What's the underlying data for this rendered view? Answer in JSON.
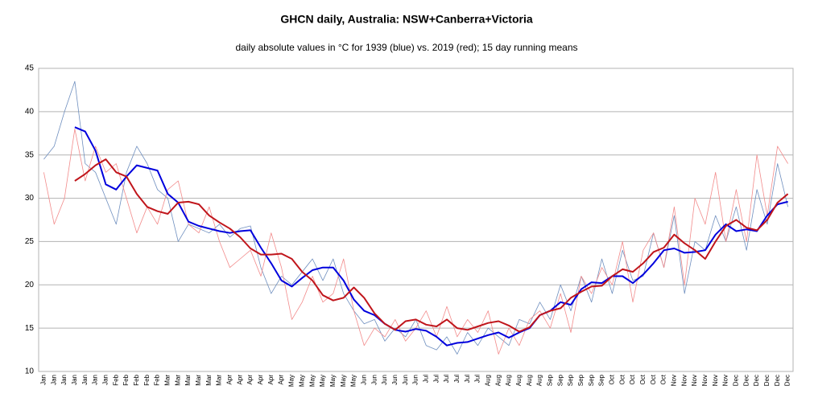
{
  "chart_data": {
    "type": "line",
    "title": "GHCN daily, Australia: NSW+Canberra+Victoria",
    "subtitle": "daily absolute values in °C for 1939 (blue) vs. 2019 (red); 15 day running means",
    "categories": [
      "Jan",
      "Jan",
      "Jan",
      "Jan",
      "Jan",
      "Jan",
      "Jan",
      "Feb",
      "Feb",
      "Feb",
      "Feb",
      "Feb",
      "Mar",
      "Mar",
      "Mar",
      "Mar",
      "Mar",
      "Mar",
      "Apr",
      "Apr",
      "Apr",
      "Apr",
      "Apr",
      "Apr",
      "May",
      "May",
      "May",
      "May",
      "May",
      "May",
      "May",
      "Jun",
      "Jun",
      "Jun",
      "Jun",
      "Jun",
      "Jun",
      "Jul",
      "Jul",
      "Jul",
      "Jul",
      "Jul",
      "Jul",
      "Aug",
      "Aug",
      "Aug",
      "Aug",
      "Aug",
      "Aug",
      "Sep",
      "Sep",
      "Sep",
      "Sep",
      "Sep",
      "Sep",
      "Oct",
      "Oct",
      "Oct",
      "Oct",
      "Oct",
      "Oct",
      "Nov",
      "Nov",
      "Nov",
      "Nov",
      "Nov",
      "Nov",
      "Dec",
      "Dec",
      "Dec",
      "Dec",
      "Dec",
      "Dec"
    ],
    "series": [
      {
        "color": "#6f8fbf",
        "width": 0.8,
        "values": [
          34.5,
          36,
          40,
          43.5,
          34,
          33,
          30,
          27,
          33,
          36,
          34,
          31,
          30,
          25,
          27,
          26.5,
          26,
          27,
          25.5,
          26.5,
          26.8,
          22,
          19,
          21,
          20,
          21.5,
          23,
          20.5,
          23,
          19,
          17,
          15.5,
          16,
          13.5,
          15,
          14,
          16,
          13,
          12.5,
          14,
          12,
          14.5,
          13,
          15,
          14,
          13,
          16,
          15.5,
          18,
          16,
          20,
          17,
          21,
          18,
          23,
          19,
          24,
          20.5,
          21,
          26,
          22,
          28,
          19,
          25,
          24,
          28,
          25,
          29,
          24,
          31,
          27,
          34,
          29
        ]
      },
      {
        "color": "#f28b8b",
        "width": 0.8,
        "values": [
          33,
          27,
          30,
          38,
          32,
          36,
          33,
          34,
          30,
          26,
          29,
          27,
          31,
          32,
          27,
          26,
          29,
          25,
          22,
          23,
          24,
          21,
          26,
          22,
          16,
          18,
          21,
          18,
          19,
          23,
          17,
          13,
          15,
          14,
          16,
          13.5,
          15,
          17,
          14,
          17.5,
          14,
          16,
          14.5,
          17,
          12,
          15,
          13,
          16,
          17,
          15,
          19,
          14.5,
          21,
          19,
          22,
          20,
          25,
          18,
          24,
          26,
          22,
          29,
          20,
          30,
          27,
          33,
          25,
          31,
          25,
          35,
          28,
          36,
          34
        ]
      },
      {
        "color": "#0000dd",
        "width": 2,
        "values": [
          null,
          null,
          null,
          38.2,
          37.7,
          35.5,
          31.6,
          31,
          32.5,
          33.8,
          33.5,
          33.2,
          30.5,
          29.5,
          27.3,
          26.8,
          26.5,
          26.2,
          26,
          26.2,
          26.3,
          24.3,
          22.5,
          20.5,
          19.8,
          20.8,
          21.7,
          22,
          22,
          20.5,
          18.3,
          17,
          16.5,
          15.5,
          14.8,
          14.6,
          14.9,
          14.7,
          14,
          13,
          13.3,
          13.4,
          13.8,
          14.2,
          14.5,
          13.9,
          14.5,
          15,
          16.5,
          17,
          18,
          17.7,
          19.5,
          20.3,
          20.2,
          21,
          21,
          20.2,
          21.2,
          22.5,
          24,
          24.2,
          23.7,
          23.8,
          24,
          25.8,
          27,
          26.2,
          26.4,
          26.2,
          28,
          29.3,
          29.6
        ]
      },
      {
        "color": "#c0151b",
        "width": 2,
        "values": [
          null,
          null,
          null,
          32,
          32.8,
          33.8,
          34.5,
          33,
          32.5,
          30.5,
          29,
          28.5,
          28.2,
          29.5,
          29.6,
          29.3,
          28,
          27.2,
          26.5,
          25.5,
          24.2,
          23.5,
          23.5,
          23.6,
          23,
          21.5,
          20.5,
          18.8,
          18.2,
          18.5,
          19.7,
          18.5,
          16.7,
          15.5,
          14.8,
          15.8,
          16,
          15.4,
          15.2,
          16,
          15,
          14.8,
          15.2,
          15.6,
          15.8,
          15.3,
          14.6,
          15.1,
          16.5,
          17,
          17.3,
          18.5,
          19.2,
          19.8,
          19.9,
          21,
          21.8,
          21.5,
          22.5,
          23.8,
          24.3,
          25.8,
          24.8,
          24,
          23,
          25,
          26.8,
          27.5,
          26.6,
          26.3,
          27.5,
          29.5,
          30.5
        ]
      }
    ],
    "ylim": [
      10,
      45
    ],
    "yticks": [
      10,
      15,
      20,
      25,
      30,
      35,
      40,
      45
    ],
    "grid": true
  }
}
